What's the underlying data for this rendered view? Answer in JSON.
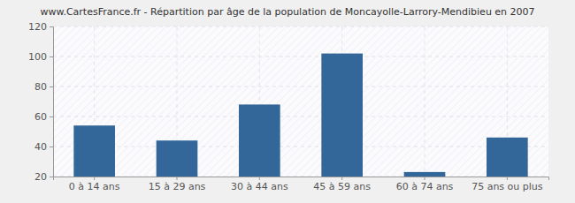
{
  "chart_data": {
    "type": "bar",
    "title": "www.CartesFrance.fr - Répartition par âge de la population de Moncayolle-Larrory-Mendibieu en 2007",
    "categories": [
      "0 à 14 ans",
      "15 à 29 ans",
      "30 à 44 ans",
      "45 à 59 ans",
      "60 à 74 ans",
      "75 ans ou plus"
    ],
    "values": [
      54,
      44,
      68,
      102,
      23,
      46
    ],
    "color": "#336699",
    "ylim": [
      20,
      120
    ],
    "yticks": [
      20,
      40,
      60,
      80,
      100,
      120
    ],
    "grid": true
  }
}
